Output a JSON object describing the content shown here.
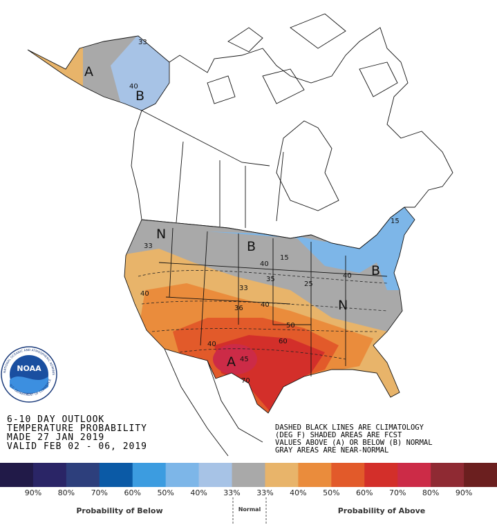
{
  "header": {
    "lines": [
      "6-10 DAY OUTLOOK",
      "TEMPERATURE PROBABILITY",
      "MADE  27 JAN 2019",
      "VALID  FEB 02 - 06, 2019"
    ]
  },
  "notes": {
    "lines": [
      "DASHED BLACK LINES ARE CLIMATOLOGY",
      "(DEG F) SHADED AREAS ARE FCST",
      "VALUES ABOVE (A) OR BELOW (B) NORMAL",
      "GRAY AREAS ARE NEAR-NORMAL"
    ]
  },
  "logo": {
    "text": "NOAA",
    "ring_top": "NATIONAL OCEANIC AND ATMOSPHERIC ADMINISTRATION",
    "ring_bottom": "U.S. DEPARTMENT OF COMMERCE"
  },
  "map_labels": [
    "A",
    "B",
    "33",
    "40",
    "N",
    "33",
    "B",
    "40",
    "33",
    "40",
    "36",
    "40",
    "50",
    "60",
    "A",
    "45",
    "70",
    "40",
    "B",
    "N",
    "40",
    "25",
    "15",
    "15",
    "35"
  ],
  "legend": {
    "colors": [
      "#211a48",
      "#2a2566",
      "#2d3f7c",
      "#0b5aa6",
      "#3c9ce0",
      "#7db6e8",
      "#a7c3e6",
      "#a9a9a9",
      "#e8b46a",
      "#ea8c3c",
      "#e25a2a",
      "#d32f2a",
      "#cc2b47",
      "#8f2a33",
      "#6b1f1f"
    ],
    "labels": [
      "90%",
      "80%",
      "70%",
      "60%",
      "50%",
      "40%",
      "33%",
      "33%",
      "40%",
      "50%",
      "60%",
      "70%",
      "80%",
      "90%"
    ],
    "below": "Probability of Below",
    "normal": "Normal",
    "above": "Probability of Above"
  }
}
